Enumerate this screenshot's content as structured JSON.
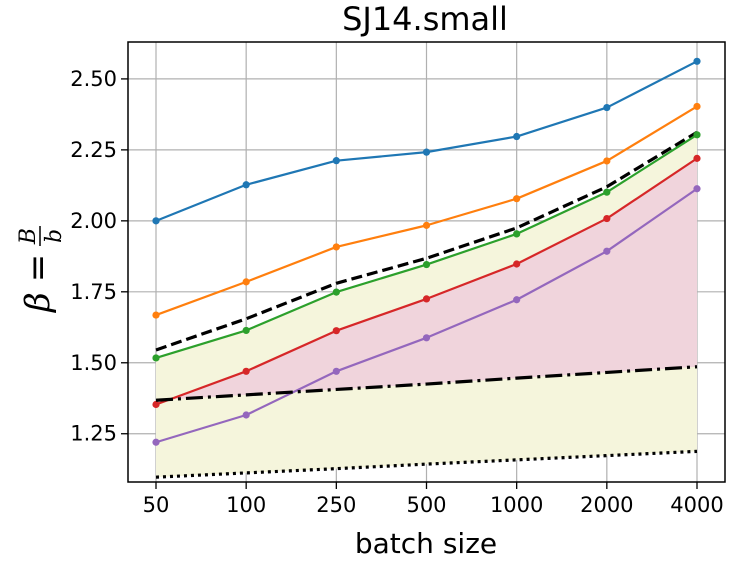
{
  "chart_data": {
    "type": "line",
    "title": "SJ14.small",
    "xlabel": "batch size",
    "ylabel": {
      "symbol": "β",
      "equals": "=",
      "numerator": "B",
      "denominator": "b"
    },
    "categories": [
      "50",
      "100",
      "250",
      "500",
      "1000",
      "2000",
      "4000"
    ],
    "yticks": [
      "1.25",
      "1.50",
      "1.75",
      "2.00",
      "2.25",
      "2.50"
    ],
    "ylim": [
      1.08,
      2.63
    ],
    "grid": true,
    "legend": "none",
    "series": [
      {
        "name": "blue",
        "color": "#1f77b4",
        "style": "solid-marker",
        "values": [
          2.0,
          2.127,
          2.212,
          2.242,
          2.297,
          2.399,
          2.562
        ]
      },
      {
        "name": "orange",
        "color": "#ff7f0e",
        "style": "solid-marker",
        "values": [
          1.668,
          1.785,
          1.908,
          1.984,
          2.078,
          2.211,
          2.403
        ]
      },
      {
        "name": "dashed-black",
        "color": "#000000",
        "style": "dashed",
        "values": [
          1.545,
          1.655,
          1.78,
          1.868,
          1.975,
          2.12,
          2.312
        ]
      },
      {
        "name": "green",
        "color": "#2ca02c",
        "style": "solid-marker",
        "values": [
          1.517,
          1.614,
          1.749,
          1.846,
          1.954,
          2.101,
          2.303
        ]
      },
      {
        "name": "red",
        "color": "#d62728",
        "style": "solid-marker",
        "values": [
          1.353,
          1.47,
          1.613,
          1.725,
          1.848,
          2.008,
          2.22
        ]
      },
      {
        "name": "purple",
        "color": "#9467bd",
        "style": "solid-marker",
        "values": [
          1.22,
          1.316,
          1.47,
          1.588,
          1.722,
          1.893,
          2.113
        ]
      },
      {
        "name": "dashdot-black",
        "color": "#000000",
        "style": "dashdot",
        "values": [
          1.368,
          1.387,
          1.406,
          1.425,
          1.446,
          1.466,
          1.486
        ]
      },
      {
        "name": "dotted-black",
        "color": "#000000",
        "style": "dotted",
        "values": [
          1.097,
          1.112,
          1.127,
          1.143,
          1.158,
          1.173,
          1.188
        ]
      }
    ],
    "fills": [
      {
        "name": "yellow-band",
        "color": "#f5f5dc",
        "upper": "green",
        "lower": "dotted-black"
      },
      {
        "name": "pink-band",
        "color": "#f0d4dc",
        "upper": "red",
        "lower": "dashdot-black"
      }
    ]
  }
}
